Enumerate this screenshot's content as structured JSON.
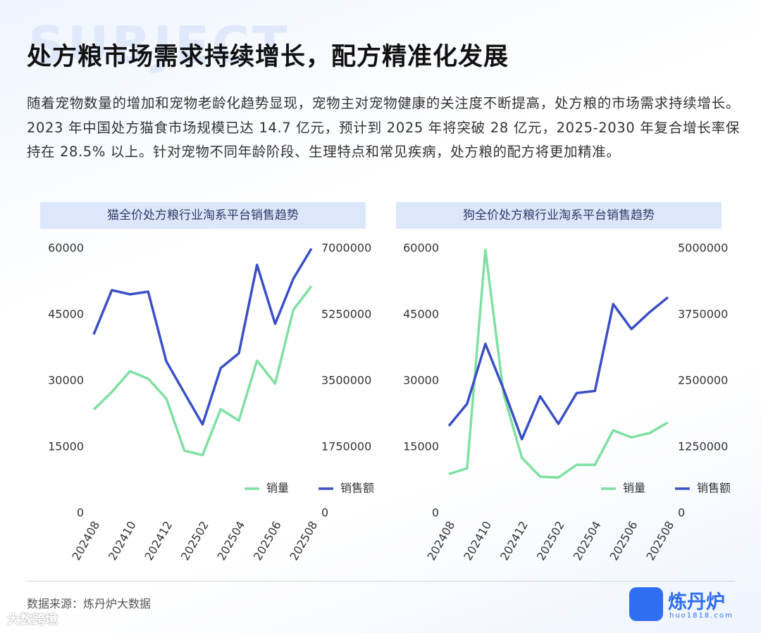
{
  "header": {
    "background_text": "SUBJECT",
    "title": "处方粮市场需求持续增长，配方精准化发展",
    "body": "随着宠物数量的增加和宠物老龄化趋势显现，宠物主对宠物健康的关注度不断提高，处方粮的市场需求持续增长。2023 年中国处方猫食市场规模已达 14.7 亿元，预计到 2025 年将突破 28 亿元，2025-2030  年复合增长率保持在  28.5%  以上。针对宠物不同年龄阶段、生理特点和常见疾病，处方粮的配方将更加精准。"
  },
  "chart_data": [
    {
      "type": "line",
      "title": "猫全价处方粮行业淘系平台销售趋势",
      "categories": [
        "202408",
        null,
        "202410",
        null,
        "202412",
        null,
        "202502",
        null,
        "202504",
        null,
        "202506",
        null,
        "202508"
      ],
      "series": [
        {
          "name": "销量",
          "color": "#7fe0a2",
          "values": [
            23500,
            27500,
            32200,
            30500,
            26000,
            14200,
            13200,
            23600,
            21000,
            34600,
            29400,
            46100,
            51500
          ]
        },
        {
          "name": "销售额",
          "color": "#3a4fc6",
          "axis": "y2",
          "values": [
            4730000,
            5900000,
            5790000,
            5860000,
            4020000,
            3180000,
            2350000,
            3840000,
            4230000,
            6570000,
            5010000,
            6200000,
            7000000
          ]
        }
      ],
      "ylim": [
        0,
        60000
      ],
      "yticks": [
        0,
        15000,
        30000,
        45000,
        60000
      ],
      "y2lim": [
        0,
        7000000
      ],
      "y2ticks": [
        0,
        1750000,
        3500000,
        5250000,
        7000000
      ],
      "legend": "lower right"
    },
    {
      "type": "line",
      "title": "狗全价处方粮行业淘系平台销售趋势",
      "categories": [
        "202408",
        null,
        "202410",
        null,
        "202412",
        null,
        "202502",
        null,
        "202504",
        null,
        "202506",
        null,
        "202508"
      ],
      "series": [
        {
          "name": "销量",
          "color": "#7fe0a2",
          "values": [
            8900,
            10200,
            59700,
            27000,
            12600,
            8300,
            8100,
            11000,
            11000,
            18800,
            17200,
            18200,
            20600
          ]
        },
        {
          "name": "销售额",
          "color": "#3a4fc6",
          "axis": "y2",
          "values": [
            1650000,
            2070000,
            3200000,
            2340000,
            1400000,
            2210000,
            1690000,
            2270000,
            2310000,
            3950000,
            3480000,
            3800000,
            4080000
          ]
        }
      ],
      "ylim": [
        0,
        60000
      ],
      "yticks": [
        0,
        15000,
        30000,
        45000,
        60000
      ],
      "y2lim": [
        0,
        5000000
      ],
      "y2ticks": [
        0,
        1250000,
        2500000,
        3750000,
        5000000
      ],
      "legend": "lower right"
    }
  ],
  "footer": {
    "source": "数据来源：炼丹炉大数据",
    "watermark": "大数跨境",
    "brand": "炼丹炉",
    "url": "huo1818.com"
  }
}
